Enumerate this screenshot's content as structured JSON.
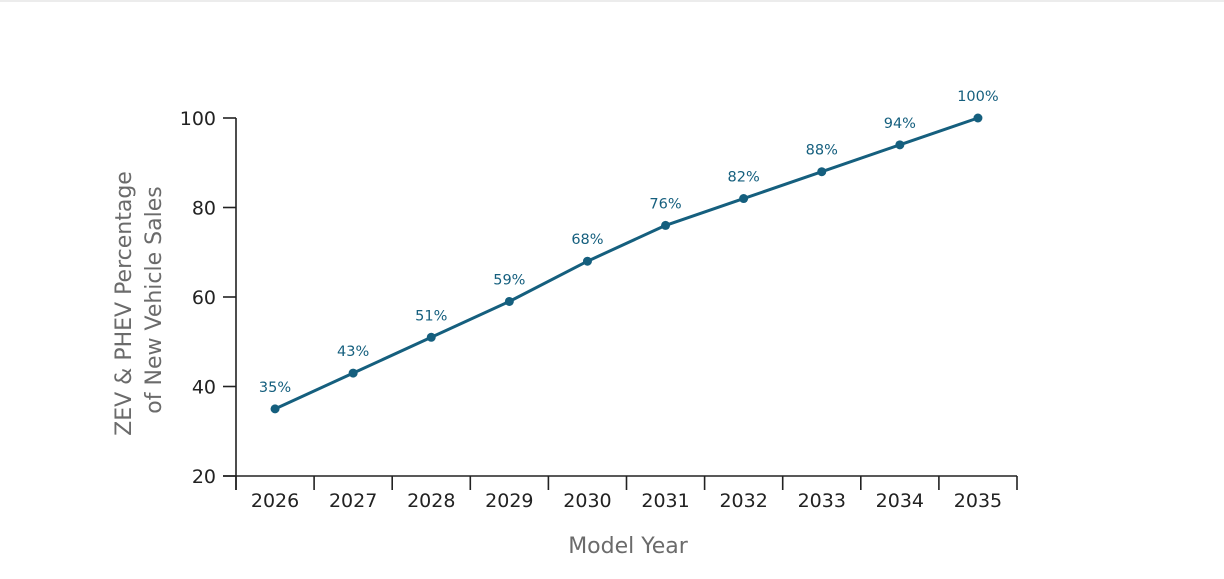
{
  "chart_data": {
    "type": "line",
    "title": "",
    "xlabel": "Model Year",
    "ylabel": [
      "ZEV & PHEV Percentage",
      "of New Vehicle Sales"
    ],
    "x": [
      "2026",
      "2027",
      "2028",
      "2029",
      "2030",
      "2031",
      "2032",
      "2033",
      "2034",
      "2035"
    ],
    "series": [
      {
        "values": [
          35,
          43,
          51,
          59,
          68,
          76,
          82,
          88,
          94,
          100
        ],
        "labels": [
          "35%",
          "43%",
          "51%",
          "59%",
          "68%",
          "76%",
          "82%",
          "88%",
          "94%",
          "100%"
        ]
      }
    ],
    "ylim": [
      20,
      100
    ],
    "yticks": [
      "20",
      "40",
      "60",
      "80",
      "100"
    ],
    "grid": false,
    "legend": "none",
    "colors": {
      "line": "#155f7e",
      "data_label": "#155f7e",
      "axis": "#222222",
      "axis_title": "#6b6b6b"
    }
  }
}
